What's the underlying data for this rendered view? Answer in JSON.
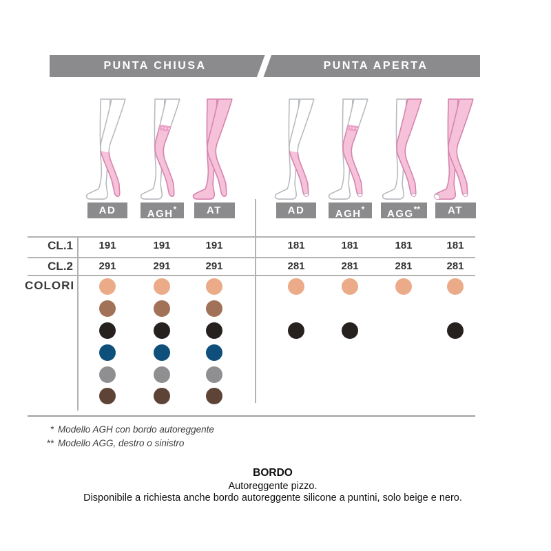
{
  "header": {
    "left_tab": "PUNTA CHIUSA",
    "right_tab": "PUNTA APERTA",
    "bar_color": "#8b8b8d"
  },
  "rows": {
    "cl1_label": "CL.1",
    "cl2_label": "CL.2",
    "colors_label": "COLORI"
  },
  "sections": [
    {
      "id": "chiusa",
      "title": "PUNTA CHIUSA",
      "models": [
        {
          "name": "AD",
          "mark": "",
          "type": "knee",
          "open": false,
          "cl1": "191",
          "cl2": "291",
          "colors": [
            "beige",
            "marrone",
            "nero",
            "blu",
            "grigio",
            "moka"
          ]
        },
        {
          "name": "AGH",
          "mark": "*",
          "type": "thigh",
          "open": false,
          "cl1": "191",
          "cl2": "291",
          "colors": [
            "beige",
            "marrone",
            "nero",
            "blu",
            "grigio",
            "moka"
          ]
        },
        {
          "name": "AT",
          "mark": "",
          "type": "tights",
          "open": false,
          "cl1": "191",
          "cl2": "291",
          "colors": [
            "beige",
            "marrone",
            "nero",
            "blu",
            "grigio",
            "moka"
          ]
        }
      ]
    },
    {
      "id": "aperta",
      "title": "PUNTA APERTA",
      "models": [
        {
          "name": "AD",
          "mark": "",
          "type": "knee",
          "open": true,
          "cl1": "181",
          "cl2": "281",
          "colors": [
            "beige",
            "nero"
          ]
        },
        {
          "name": "AGH",
          "mark": "*",
          "type": "thigh",
          "open": true,
          "cl1": "181",
          "cl2": "281",
          "colors": [
            "beige",
            "nero"
          ]
        },
        {
          "name": "AGG",
          "mark": "**",
          "type": "single",
          "open": true,
          "cl1": "181",
          "cl2": "281",
          "colors": [
            "beige"
          ]
        },
        {
          "name": "AT",
          "mark": "",
          "type": "tights",
          "open": true,
          "cl1": "181",
          "cl2": "281",
          "colors": [
            "beige",
            "nero"
          ]
        }
      ]
    }
  ],
  "color_order": [
    "beige",
    "marrone",
    "nero",
    "blu",
    "grigio",
    "moka"
  ],
  "palette": {
    "beige": "#ebab89",
    "marrone": "#a17257",
    "nero": "#26211f",
    "blu": "#0f4f7c",
    "grigio": "#8f8f91",
    "moka": "#5e4437"
  },
  "footnotes": [
    {
      "mark": "*",
      "text": "Modello AGH con bordo autoreggente"
    },
    {
      "mark": "**",
      "text": "Modello AGG, destro o sinistro"
    }
  ],
  "bottom": {
    "title": "BORDO",
    "line1": "Autoreggente pizzo.",
    "line2": "Disponibile a richiesta anche bordo autoreggente silicone a puntini, solo beige e nero."
  }
}
